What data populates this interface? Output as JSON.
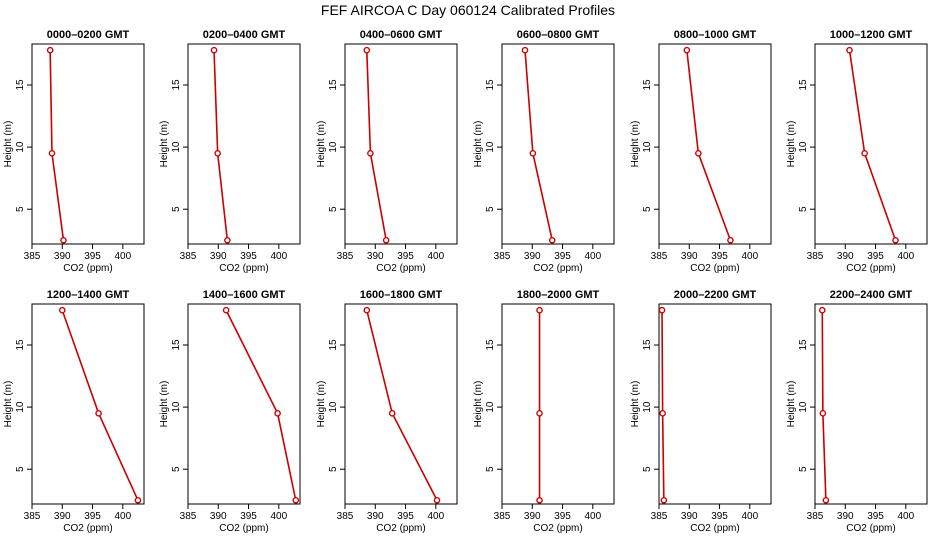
{
  "title": "FEF AIRCOA C  Day 060124  Calibrated Profiles",
  "chart_data": {
    "type": "line",
    "xlabel": "CO2 (ppm)",
    "ylabel": "Height (m)",
    "xlim": [
      385,
      403.5
    ],
    "ylim": [
      2.2,
      18.3
    ],
    "xticks": [
      385,
      390,
      395,
      400
    ],
    "yticks": [
      5,
      10,
      15
    ],
    "heights": [
      2.5,
      9.5,
      17.8
    ],
    "grid": false,
    "line_color": "#cc0000",
    "panels": [
      {
        "name": "0000–0200 GMT",
        "values": [
          390.2,
          388.3,
          388.0
        ]
      },
      {
        "name": "0200–0400 GMT",
        "values": [
          391.5,
          389.9,
          389.3
        ]
      },
      {
        "name": "0400–0600 GMT",
        "values": [
          391.8,
          389.2,
          388.6
        ]
      },
      {
        "name": "0600–0800 GMT",
        "values": [
          393.3,
          390.1,
          388.8
        ]
      },
      {
        "name": "0800–1000 GMT",
        "values": [
          396.8,
          391.5,
          389.6
        ]
      },
      {
        "name": "1000–1200 GMT",
        "values": [
          398.3,
          393.2,
          390.7
        ]
      },
      {
        "name": "1200–1400 GMT",
        "values": [
          402.5,
          396.0,
          390.0
        ]
      },
      {
        "name": "1400–1600 GMT",
        "values": [
          402.8,
          399.8,
          391.3
        ]
      },
      {
        "name": "1600–1800 GMT",
        "values": [
          400.2,
          392.8,
          388.6
        ]
      },
      {
        "name": "1800–2000 GMT",
        "values": [
          391.2,
          391.2,
          391.2
        ]
      },
      {
        "name": "2000–2200 GMT",
        "values": [
          385.8,
          385.6,
          385.5
        ]
      },
      {
        "name": "2200–2400 GMT",
        "values": [
          386.8,
          386.3,
          386.2
        ]
      }
    ]
  }
}
